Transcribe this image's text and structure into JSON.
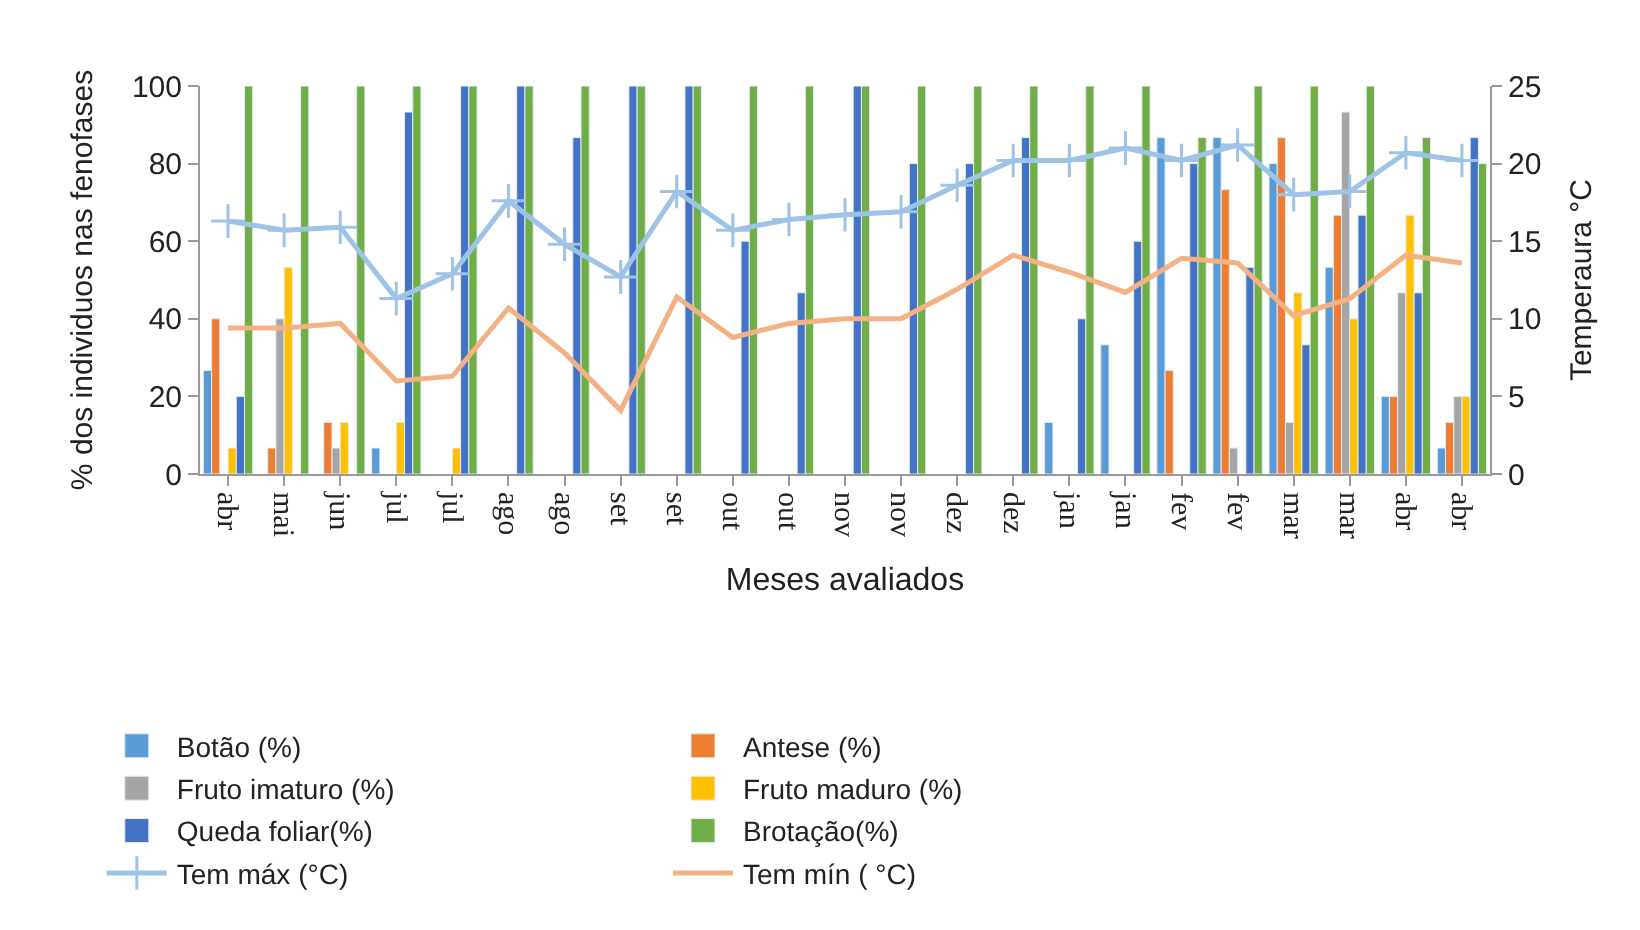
{
  "chart_data": {
    "type": "bar",
    "xlabel": "Meses avaliados",
    "ylabel": "% dos individuos nas fenofases",
    "y2label": "Temperaura °C",
    "categories": [
      "abr",
      "mai",
      "jun",
      "jul",
      "jul",
      "ago",
      "ago",
      "set",
      "set",
      "out",
      "out",
      "nov",
      "nov",
      "dez",
      "dez",
      "jan",
      "jan",
      "fev",
      "fev",
      "mar",
      "mar",
      "abr",
      "abr"
    ],
    "series": [
      {
        "name": "Botão (%)",
        "color": "#5b9bd5",
        "values": [
          26.7,
          null,
          null,
          6.7,
          null,
          null,
          null,
          null,
          null,
          null,
          null,
          null,
          null,
          null,
          null,
          13.3,
          33.3,
          86.7,
          86.7,
          80,
          53.3,
          20,
          6.7
        ]
      },
      {
        "name": "Antese (%)",
        "color": "#ed7d31",
        "values": [
          40,
          6.7,
          13.3,
          null,
          null,
          null,
          null,
          null,
          null,
          null,
          null,
          null,
          null,
          null,
          null,
          null,
          null,
          26.7,
          73.3,
          86.7,
          66.7,
          20,
          13.3
        ]
      },
      {
        "name": "Fruto imaturo (%)",
        "color": "#a5a5a5",
        "values": [
          null,
          40,
          6.7,
          null,
          null,
          null,
          null,
          null,
          null,
          null,
          null,
          null,
          null,
          null,
          null,
          null,
          null,
          null,
          6.7,
          13.3,
          93.3,
          46.7,
          20
        ]
      },
      {
        "name": "Fruto maduro (%)",
        "color": "#ffc000",
        "values": [
          6.7,
          53.3,
          13.3,
          13.3,
          6.7,
          null,
          null,
          null,
          null,
          null,
          null,
          null,
          null,
          null,
          null,
          null,
          null,
          null,
          null,
          46.7,
          40,
          66.7,
          20
        ]
      },
      {
        "name": "Queda foliar(%)",
        "color": "#4472c4",
        "values": [
          20,
          null,
          null,
          93.3,
          100,
          100,
          86.7,
          100,
          100,
          60,
          46.7,
          100,
          80,
          80,
          86.7,
          40,
          60,
          80,
          53.3,
          33.3,
          66.7,
          46.7,
          86.7
        ]
      },
      {
        "name": "Brotação(%)",
        "color": "#70ad47",
        "values": [
          100,
          100,
          100,
          100,
          100,
          100,
          100,
          100,
          100,
          100,
          100,
          100,
          100,
          100,
          100,
          100,
          100,
          86.7,
          100,
          100,
          100,
          86.7,
          80
        ]
      },
      {
        "name": "Tem máx (°C)",
        "type": "line",
        "axis": "y2",
        "marker": "cross",
        "color": "#9dc3e6",
        "values": [
          16.3,
          15.7,
          15.9,
          11.3,
          12.9,
          17.6,
          14.8,
          12.7,
          18.2,
          15.7,
          16.4,
          16.7,
          16.9,
          18.6,
          20.2,
          20.2,
          21.0,
          20.2,
          21.2,
          18.0,
          18.2,
          20.7,
          20.2
        ]
      },
      {
        "name": "Tem mín ( °C)",
        "type": "line",
        "axis": "y2",
        "color": "#f4b183",
        "values": [
          9.4,
          9.4,
          9.7,
          6.0,
          6.3,
          10.7,
          7.8,
          4.1,
          11.4,
          8.8,
          9.7,
          10.0,
          10.0,
          11.9,
          14.1,
          13.0,
          11.7,
          13.9,
          13.6,
          10.2,
          11.3,
          14.1,
          13.6
        ]
      }
    ],
    "ylim": [
      0,
      100
    ],
    "yticks": [
      0,
      20,
      40,
      60,
      80,
      100
    ],
    "y2lim": [
      0,
      25
    ],
    "y2ticks": [
      0,
      5,
      10,
      15,
      20,
      25
    ],
    "legend": "bottom"
  }
}
